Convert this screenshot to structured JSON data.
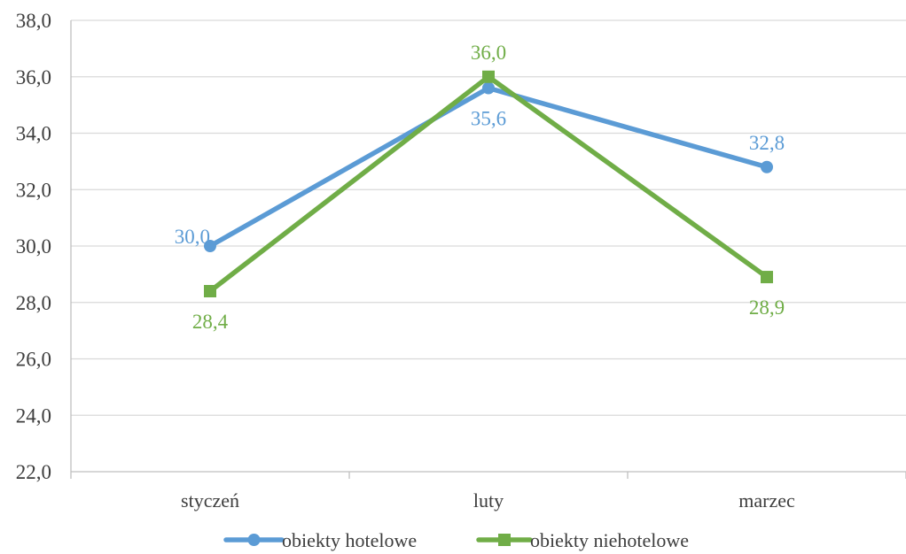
{
  "chart_data": {
    "type": "line",
    "categories": [
      "styczeń",
      "luty",
      "marzec"
    ],
    "series": [
      {
        "name": "obiekty hotelowe",
        "values": [
          30.0,
          35.6,
          32.8
        ],
        "labels": [
          "30,0",
          "35,6",
          "32,8"
        ],
        "color": "#5b9bd5",
        "marker": "circle"
      },
      {
        "name": "obiekty niehotelowe",
        "values": [
          28.4,
          36.0,
          28.9
        ],
        "labels": [
          "28,4",
          "36,0",
          "28,9"
        ],
        "color": "#70ad47",
        "marker": "square"
      }
    ],
    "ylim": [
      22.0,
      38.0
    ],
    "ytick_labels": [
      "22,0",
      "24,0",
      "26,0",
      "28,0",
      "30,0",
      "32,0",
      "34,0",
      "36,0",
      "38,0"
    ],
    "title": "",
    "xlabel": "",
    "ylabel": "",
    "grid": true,
    "legend_position": "bottom",
    "gridline_color": "#d9d9d9",
    "axis_color": "#bfbfbf"
  }
}
